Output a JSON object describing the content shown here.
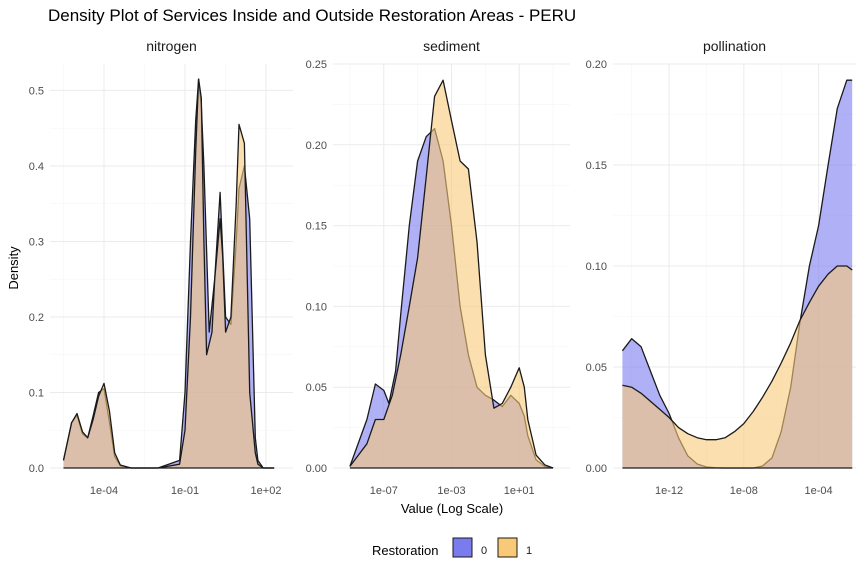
{
  "chart_data": {
    "type": "area",
    "title": "Density Plot of Services Inside and Outside Restoration Areas - PERU",
    "xlabel": "Value (Log Scale)",
    "ylabel": "Density",
    "x_scale": "log10",
    "grid": true,
    "legend": {
      "title": "Restoration",
      "position": "bottom",
      "entries": [
        {
          "label": "0",
          "color": "#7B7BF0"
        },
        {
          "label": "1",
          "color": "#F9C978"
        }
      ]
    },
    "panels": [
      {
        "name": "nitrogen",
        "xlim": [
          1e-06,
          1000.0
        ],
        "ylim": [
          0,
          0.535
        ],
        "xticks": [
          {
            "value": 0.0001,
            "label": "1e-04"
          },
          {
            "value": 0.1,
            "label": "1e-01"
          },
          {
            "value": 100.0,
            "label": "1e+02"
          }
        ],
        "yticks": [
          {
            "value": 0.0,
            "label": "0.0"
          },
          {
            "value": 0.1,
            "label": "0.1"
          },
          {
            "value": 0.2,
            "label": "0.2"
          },
          {
            "value": 0.3,
            "label": "0.3"
          },
          {
            "value": 0.4,
            "label": "0.4"
          },
          {
            "value": 0.5,
            "label": "0.5"
          }
        ],
        "series": [
          {
            "name": "0",
            "x": [
              3.16e-06,
              6.3e-06,
              1e-05,
              1.6e-05,
              2.5e-05,
              4e-05,
              6.3e-05,
              0.0001,
              0.00016,
              0.00025,
              0.0004,
              0.001,
              0.01,
              0.063,
              0.1,
              0.16,
              0.25,
              0.32,
              0.4,
              0.5,
              0.79,
              1.26,
              2.0,
              3.2,
              5.0,
              7.9,
              10,
              15.8,
              25,
              40,
              50,
              79,
              126,
              200
            ],
            "y": [
              0.01,
              0.06,
              0.07,
              0.045,
              0.04,
              0.07,
              0.1,
              0.105,
              0.06,
              0.015,
              0.003,
              0.0,
              0.0,
              0.01,
              0.1,
              0.3,
              0.46,
              0.515,
              0.48,
              0.4,
              0.18,
              0.25,
              0.365,
              0.2,
              0.19,
              0.3,
              0.37,
              0.4,
              0.33,
              0.04,
              0.01,
              0.0,
              0.0,
              0.0
            ]
          },
          {
            "name": "1",
            "x": [
              3.16e-06,
              6.3e-06,
              1e-05,
              1.6e-05,
              2.5e-05,
              4e-05,
              6.3e-05,
              0.0001,
              0.00016,
              0.00025,
              0.0004,
              0.001,
              0.01,
              0.063,
              0.1,
              0.16,
              0.25,
              0.32,
              0.4,
              0.5,
              0.63,
              1.0,
              1.26,
              2.0,
              2.5,
              3.2,
              5.0,
              7.9,
              10,
              15.8,
              25,
              40,
              50,
              79,
              126,
              200
            ],
            "y": [
              0.01,
              0.06,
              0.072,
              0.048,
              0.04,
              0.065,
              0.095,
              0.112,
              0.075,
              0.02,
              0.004,
              0.0,
              0.0,
              0.005,
              0.05,
              0.2,
              0.42,
              0.515,
              0.49,
              0.3,
              0.15,
              0.18,
              0.25,
              0.33,
              0.28,
              0.18,
              0.2,
              0.35,
              0.455,
              0.43,
              0.1,
              0.02,
              0.005,
              0.0,
              0.0,
              0.0
            ]
          }
        ]
      },
      {
        "name": "sediment",
        "xlim": [
          1e-10,
          10000.0
        ],
        "ylim": [
          0,
          0.25
        ],
        "xticks": [
          {
            "value": 1e-07,
            "label": "1e-07"
          },
          {
            "value": 0.001,
            "label": "1e-03"
          },
          {
            "value": 10.0,
            "label": "1e+01"
          }
        ],
        "yticks": [
          {
            "value": 0.0,
            "label": "0.00"
          },
          {
            "value": 0.05,
            "label": "0.05"
          },
          {
            "value": 0.1,
            "label": "0.10"
          },
          {
            "value": 0.15,
            "label": "0.15"
          },
          {
            "value": 0.2,
            "label": "0.20"
          },
          {
            "value": 0.25,
            "label": "0.25"
          }
        ],
        "series": [
          {
            "name": "0",
            "x": [
              1e-09,
              1e-08,
              3.2e-08,
              1e-07,
              2e-07,
              5e-07,
              1e-06,
              3.2e-06,
              1e-05,
              3.2e-05,
              0.0001,
              0.00032,
              0.001,
              0.0032,
              0.01,
              0.032,
              0.1,
              0.32,
              1,
              3.2,
              10,
              20,
              32,
              100,
              320,
              1000
            ],
            "y": [
              0.001,
              0.03,
              0.052,
              0.048,
              0.04,
              0.06,
              0.095,
              0.15,
              0.19,
              0.205,
              0.21,
              0.19,
              0.15,
              0.1,
              0.07,
              0.05,
              0.045,
              0.042,
              0.038,
              0.045,
              0.04,
              0.032,
              0.02,
              0.005,
              0.001,
              0.0
            ]
          },
          {
            "name": "1",
            "x": [
              1e-09,
              1e-08,
              3.2e-08,
              1e-07,
              3.2e-07,
              1e-06,
              3.2e-06,
              1e-05,
              3.2e-05,
              0.0001,
              0.00032,
              0.001,
              0.0032,
              0.01,
              0.032,
              0.1,
              0.32,
              1,
              3.2,
              10,
              20,
              32,
              100,
              320,
              1000
            ],
            "y": [
              0.001,
              0.015,
              0.03,
              0.03,
              0.045,
              0.07,
              0.1,
              0.13,
              0.18,
              0.23,
              0.24,
              0.215,
              0.19,
              0.185,
              0.14,
              0.07,
              0.037,
              0.04,
              0.05,
              0.062,
              0.05,
              0.03,
              0.008,
              0.002,
              0.0
            ]
          }
        ]
      },
      {
        "name": "pollination",
        "xlim": [
          1e-15,
          0.01
        ],
        "ylim": [
          0,
          0.2
        ],
        "xticks": [
          {
            "value": 1e-12,
            "label": "1e-12"
          },
          {
            "value": 1e-08,
            "label": "1e-08"
          },
          {
            "value": 0.0001,
            "label": "1e-04"
          }
        ],
        "yticks": [
          {
            "value": 0.0,
            "label": "0.00"
          },
          {
            "value": 0.05,
            "label": "0.05"
          },
          {
            "value": 0.1,
            "label": "0.10"
          },
          {
            "value": 0.15,
            "label": "0.15"
          },
          {
            "value": 0.2,
            "label": "0.20"
          }
        ],
        "series": [
          {
            "name": "0",
            "x": [
              3.2e-15,
              1e-14,
              3.2e-14,
              1e-13,
              3.2e-13,
              1e-12,
              3.2e-12,
              1e-11,
              3.2e-11,
              1e-10,
              3.2e-10,
              1e-09,
              3.2e-09,
              1e-08,
              3.2e-08,
              1e-07,
              3.2e-07,
              1e-06,
              3.2e-06,
              1e-05,
              3.2e-05,
              0.0001,
              0.00032,
              0.001,
              0.0032,
              0.0063
            ],
            "y": [
              0.058,
              0.064,
              0.06,
              0.048,
              0.036,
              0.027,
              0.015,
              0.006,
              0.002,
              0.0005,
              0.0001,
              0.0,
              0.0,
              0.0,
              0.0,
              0.001,
              0.005,
              0.018,
              0.04,
              0.072,
              0.1,
              0.12,
              0.15,
              0.178,
              0.192,
              0.192
            ]
          },
          {
            "name": "1",
            "x": [
              3.2e-15,
              1e-14,
              3.2e-14,
              1e-13,
              3.2e-13,
              1e-12,
              3.2e-12,
              1e-11,
              3.2e-11,
              1e-10,
              3.2e-10,
              1e-09,
              3.2e-09,
              1e-08,
              3.2e-08,
              1e-07,
              3.2e-07,
              1e-06,
              3.2e-06,
              1e-05,
              3.2e-05,
              0.0001,
              0.00032,
              0.001,
              0.0032,
              0.0063
            ],
            "y": [
              0.041,
              0.04,
              0.037,
              0.033,
              0.029,
              0.025,
              0.02,
              0.017,
              0.015,
              0.014,
              0.014,
              0.015,
              0.018,
              0.022,
              0.028,
              0.035,
              0.043,
              0.052,
              0.062,
              0.073,
              0.082,
              0.09,
              0.096,
              0.1,
              0.1,
              0.098
            ]
          }
        ]
      }
    ]
  },
  "colors": {
    "fill_0": "#7B7BF0",
    "fill_1": "#F9C978",
    "overlap": "#B3877F",
    "outline": "#1a1a1a",
    "grid_major": "#EBEBEB",
    "grid_minor": "#F5F5F5"
  }
}
